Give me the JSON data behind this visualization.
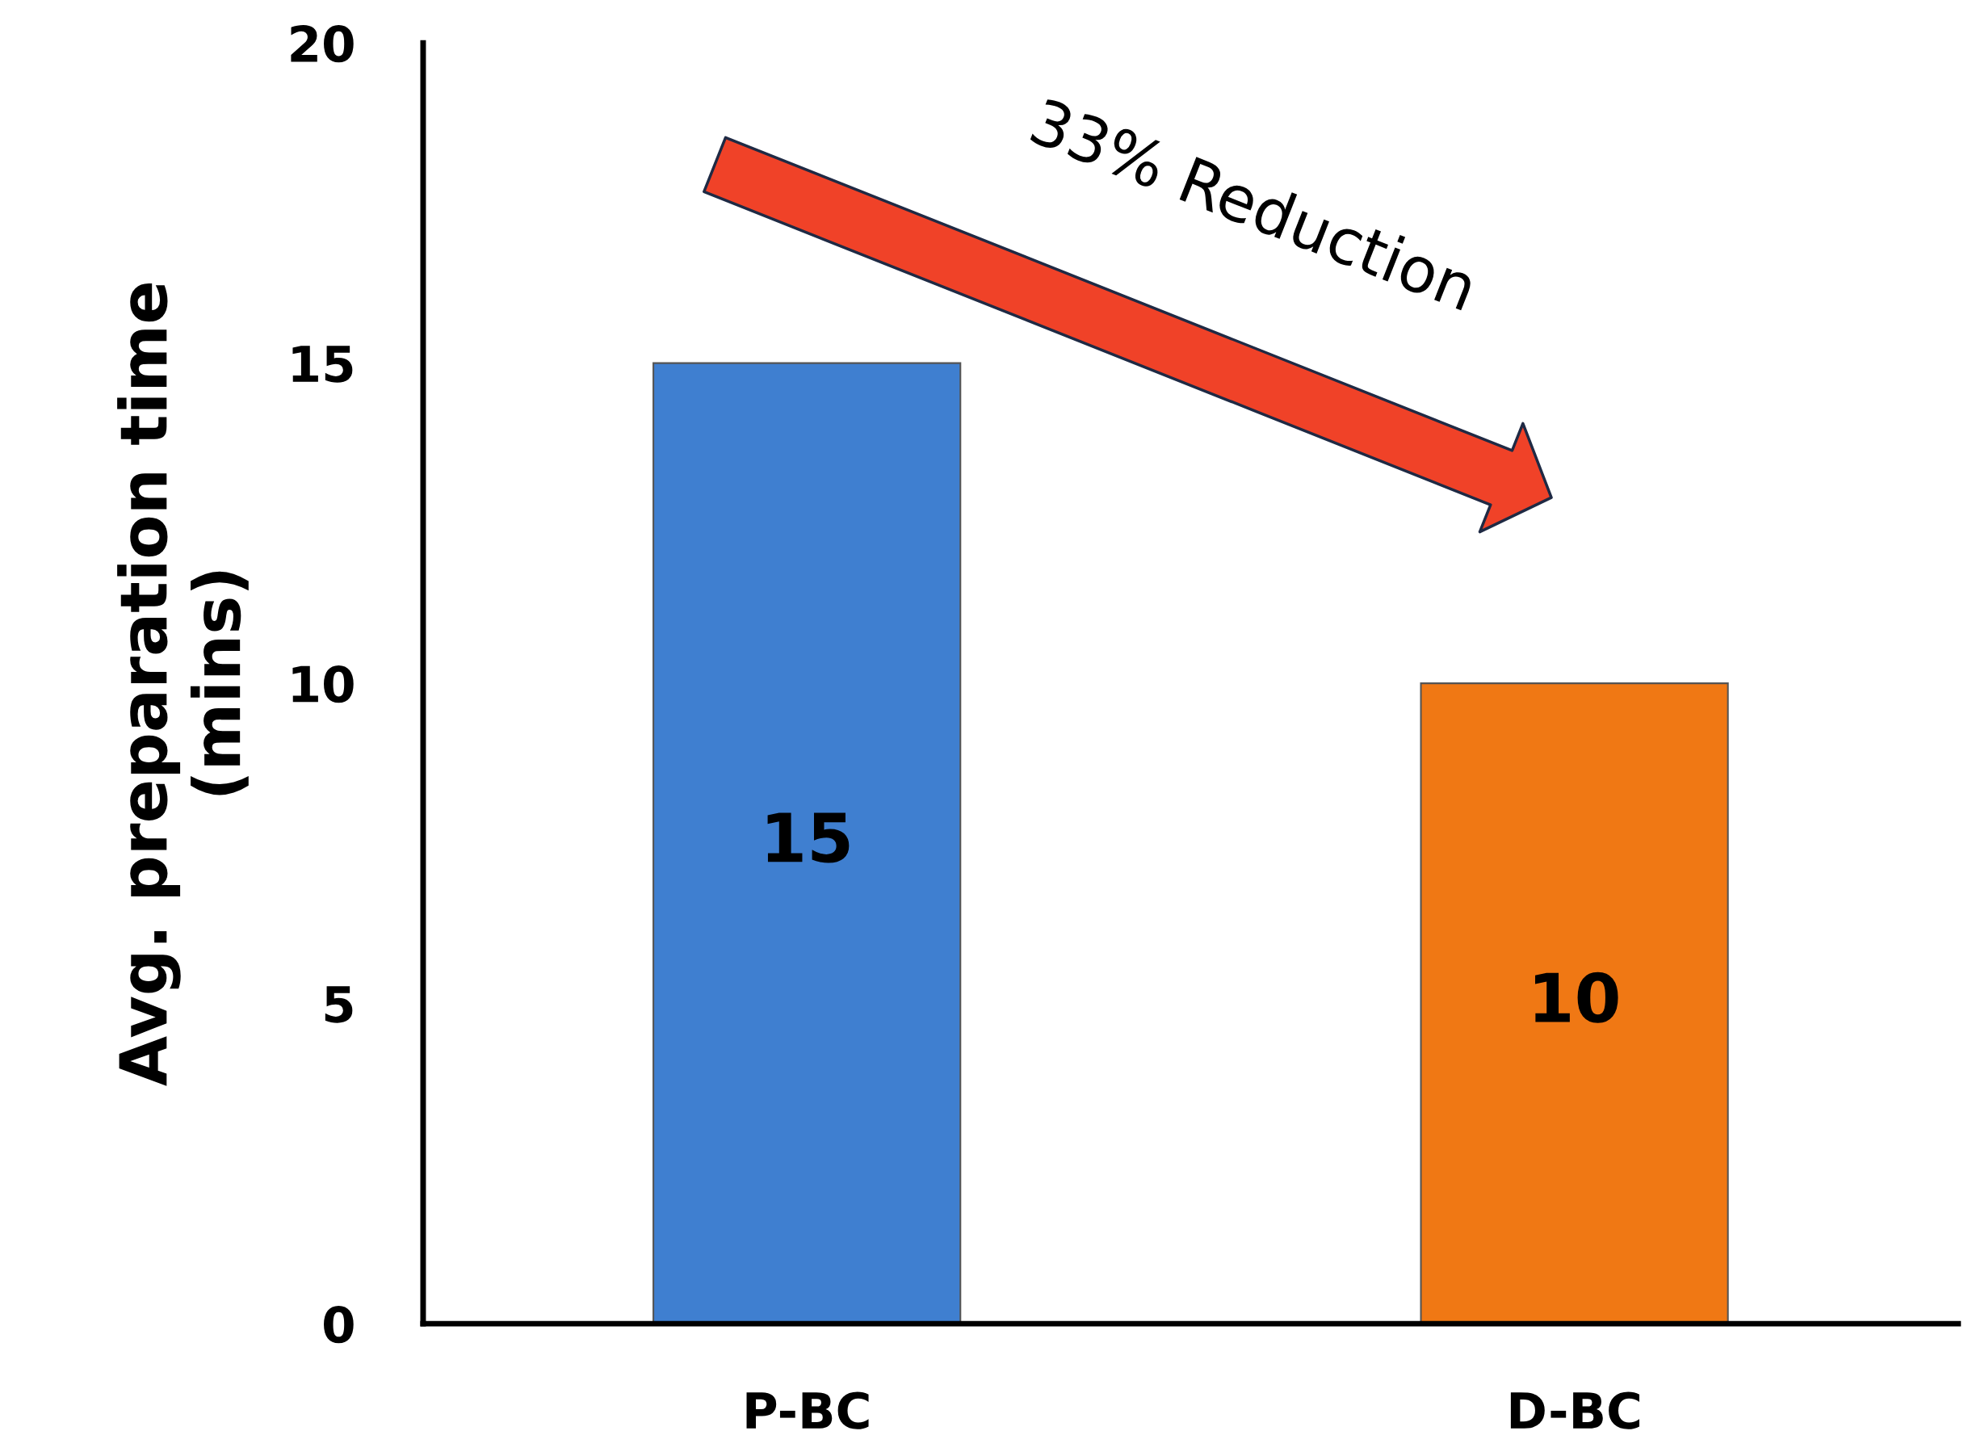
{
  "chart_data": {
    "type": "bar",
    "categories": [
      "P-BC",
      "D-BC"
    ],
    "values": [
      15,
      10
    ],
    "colors": [
      "#3f7fd0",
      "#f07814"
    ],
    "ylabel": "Avg. preparation time\n(mins)",
    "ylim": [
      0,
      20
    ],
    "yticks": [
      0,
      5,
      10,
      15,
      20
    ],
    "data_labels": true,
    "grid": false,
    "annotations": [
      "33% Reduction"
    ]
  }
}
